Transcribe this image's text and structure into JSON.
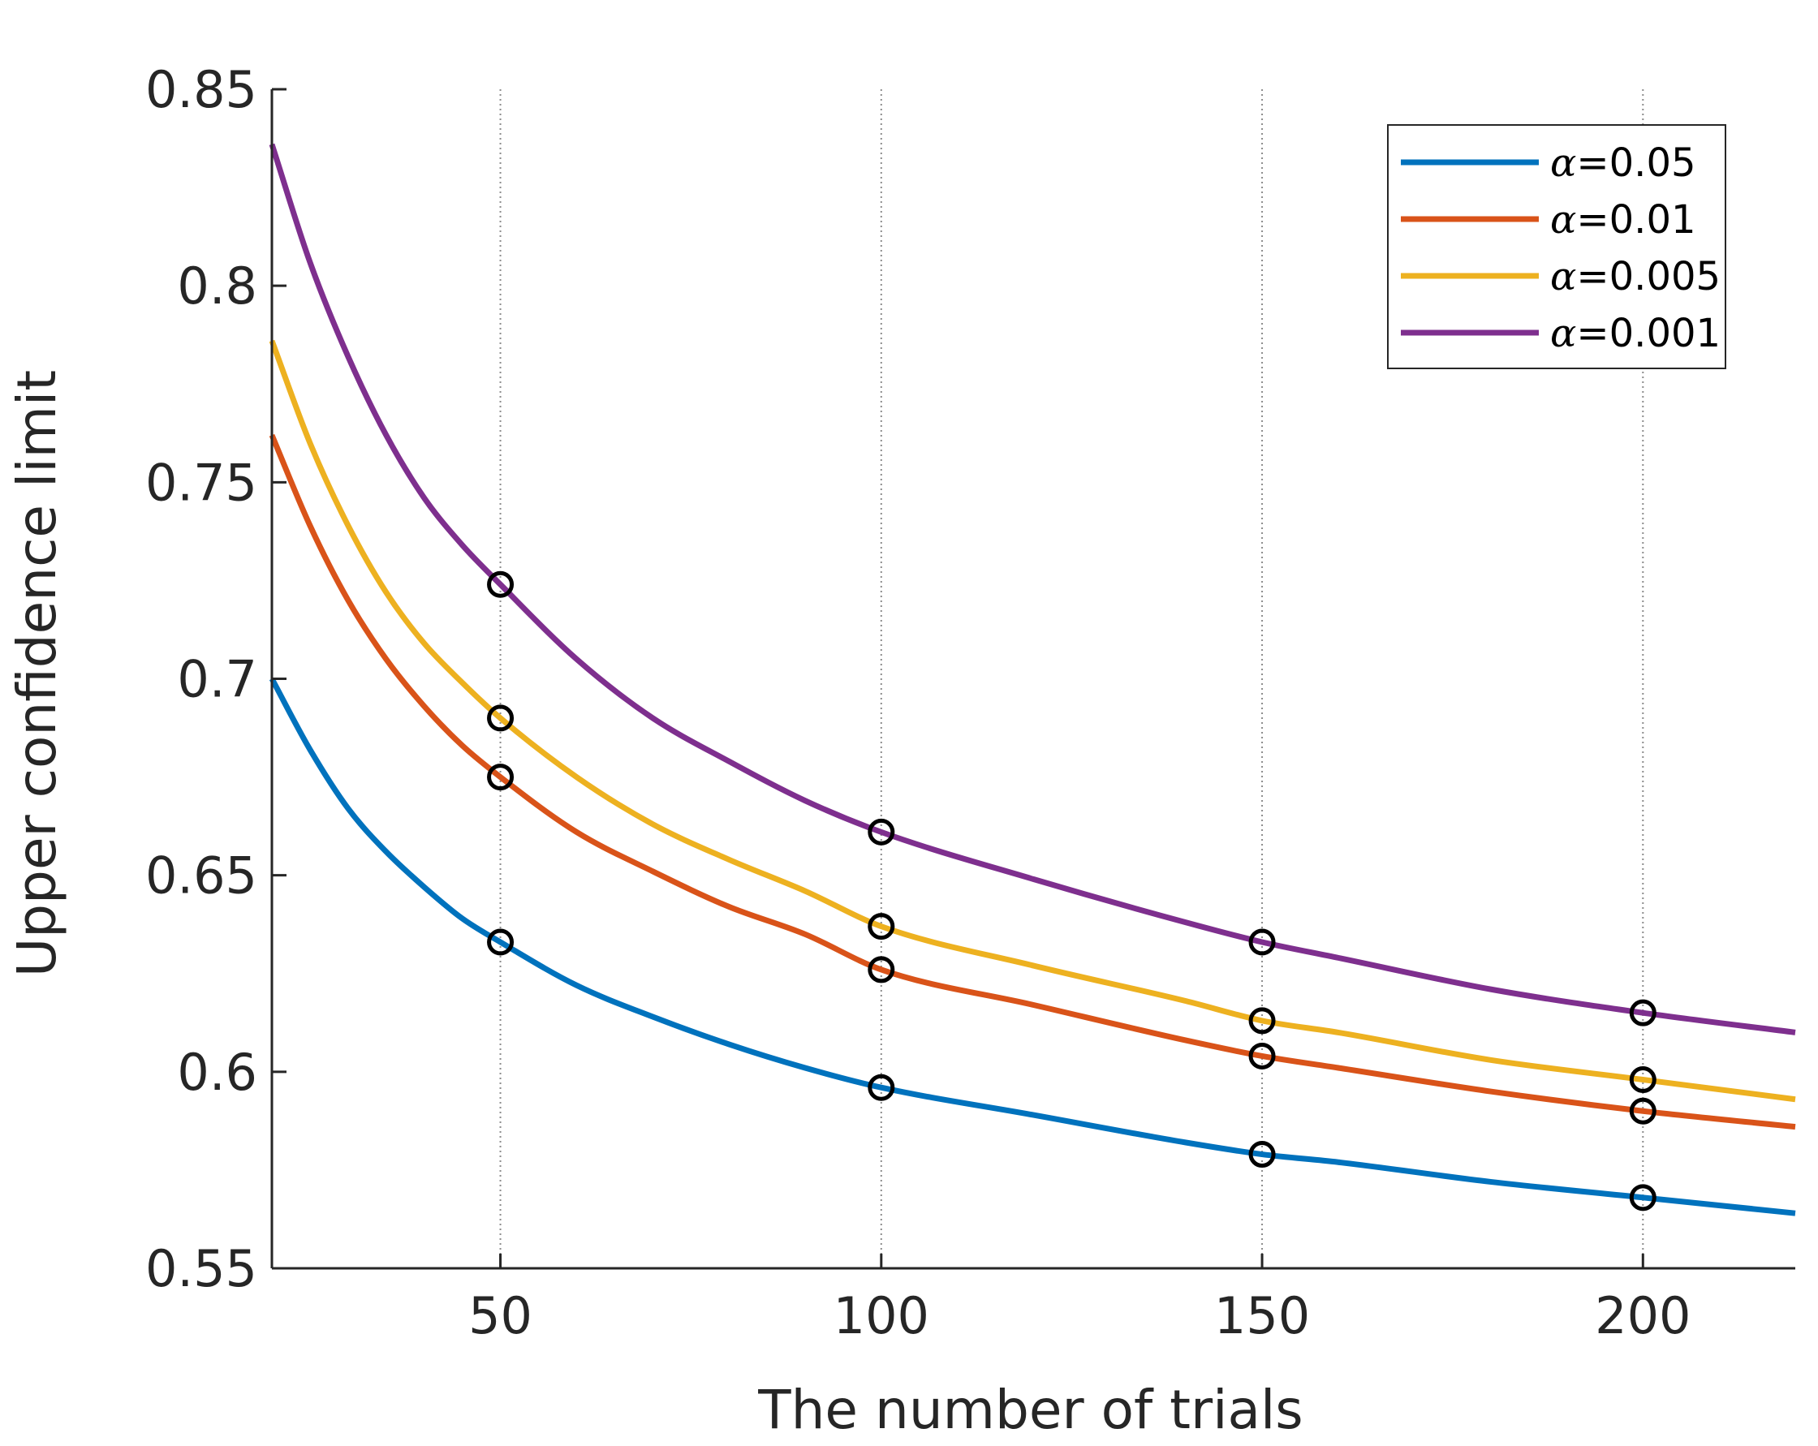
{
  "chart_data": {
    "type": "line",
    "title": "",
    "xlabel": "The number of trials",
    "ylabel": "Upper confidence limit",
    "xlim": [
      20,
      220
    ],
    "ylim": [
      0.55,
      0.85
    ],
    "grid": "vertical dotted lines at x ticks",
    "legend_position": "top-right",
    "xticks": [
      50,
      100,
      150,
      200
    ],
    "xtick_labels": [
      "50",
      "100",
      "150",
      "200"
    ],
    "yticks": [
      0.55,
      0.6,
      0.65,
      0.7,
      0.75,
      0.8,
      0.85
    ],
    "ytick_labels": [
      "0.55",
      "0.6",
      "0.65",
      "0.7",
      "0.75",
      "0.8",
      "0.85"
    ],
    "marker_style": "open black circles",
    "series": [
      {
        "name": "α=0.05",
        "alpha_symbol": "α",
        "alpha_value": "=0.05",
        "color": "#0072BD",
        "curve": {
          "x": [
            20,
            25,
            30,
            35,
            40,
            45,
            50,
            60,
            70,
            80,
            90,
            100,
            120,
            140,
            150,
            160,
            180,
            200,
            220
          ],
          "y": [
            0.7,
            0.682,
            0.667,
            0.656,
            0.647,
            0.639,
            0.633,
            0.622,
            0.614,
            0.607,
            0.601,
            0.596,
            0.589,
            0.582,
            0.579,
            0.577,
            0.572,
            0.568,
            0.564
          ]
        },
        "markers": {
          "x": [
            50,
            100,
            150,
            200
          ],
          "y": [
            0.633,
            0.596,
            0.579,
            0.568
          ]
        }
      },
      {
        "name": "α=0.01",
        "alpha_symbol": "α",
        "alpha_value": "=0.01",
        "color": "#D95319",
        "curve": {
          "x": [
            20,
            25,
            30,
            35,
            40,
            45,
            50,
            60,
            70,
            80,
            90,
            100,
            120,
            140,
            150,
            160,
            180,
            200,
            220
          ],
          "y": [
            0.762,
            0.739,
            0.72,
            0.705,
            0.693,
            0.683,
            0.675,
            0.661,
            0.651,
            0.642,
            0.635,
            0.626,
            0.617,
            0.608,
            0.604,
            0.601,
            0.595,
            0.59,
            0.586
          ]
        },
        "markers": {
          "x": [
            50,
            100,
            150,
            200
          ],
          "y": [
            0.675,
            0.626,
            0.604,
            0.59
          ]
        }
      },
      {
        "name": "α=0.005",
        "alpha_symbol": "α",
        "alpha_value": "=0.005",
        "color": "#EDB120",
        "curve": {
          "x": [
            20,
            25,
            30,
            35,
            40,
            45,
            50,
            60,
            70,
            80,
            90,
            100,
            120,
            140,
            150,
            160,
            180,
            200,
            220
          ],
          "y": [
            0.786,
            0.76,
            0.739,
            0.722,
            0.709,
            0.699,
            0.69,
            0.675,
            0.663,
            0.654,
            0.646,
            0.637,
            0.627,
            0.618,
            0.613,
            0.61,
            0.603,
            0.598,
            0.593
          ]
        },
        "markers": {
          "x": [
            50,
            100,
            150,
            200
          ],
          "y": [
            0.69,
            0.637,
            0.613,
            0.598
          ]
        }
      },
      {
        "name": "α=0.001",
        "alpha_symbol": "α",
        "alpha_value": "=0.001",
        "color": "#7E2F8E",
        "curve": {
          "x": [
            20,
            25,
            30,
            35,
            40,
            45,
            50,
            60,
            70,
            80,
            90,
            100,
            120,
            140,
            150,
            160,
            180,
            200,
            220
          ],
          "y": [
            0.836,
            0.806,
            0.782,
            0.762,
            0.746,
            0.734,
            0.724,
            0.705,
            0.69,
            0.679,
            0.669,
            0.661,
            0.649,
            0.638,
            0.633,
            0.629,
            0.621,
            0.615,
            0.61
          ]
        },
        "markers": {
          "x": [
            50,
            100,
            150,
            200
          ],
          "y": [
            0.724,
            0.661,
            0.633,
            0.615
          ]
        }
      }
    ]
  }
}
